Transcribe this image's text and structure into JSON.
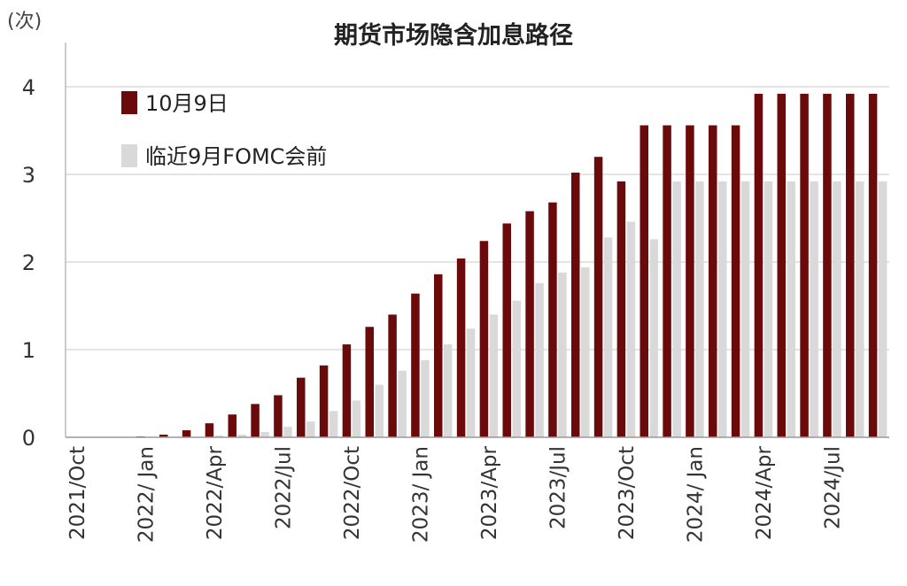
{
  "chart_data": {
    "type": "bar",
    "title": "期货市场隐含加息路径",
    "unit_label": "(次)",
    "ylim": [
      0,
      4.5
    ],
    "yticks": [
      "0",
      "1",
      "2",
      "3",
      "4"
    ],
    "grid": true,
    "legend_position": "top-left",
    "categories": [
      "2021/10",
      "2021/11",
      "2021/12",
      "2022/01",
      "2022/02",
      "2022/03",
      "2022/04",
      "2022/05",
      "2022/06",
      "2022/07",
      "2022/08",
      "2022/09",
      "2022/10",
      "2022/11",
      "2022/12",
      "2023/01",
      "2023/02",
      "2023/03",
      "2023/04",
      "2023/05",
      "2023/06",
      "2023/07",
      "2023/08",
      "2023/09",
      "2023/10",
      "2023/11",
      "2023/12",
      "2024/01",
      "2024/02",
      "2024/03",
      "2024/04",
      "2024/05",
      "2024/06",
      "2024/07",
      "2024/08",
      "2024/09"
    ],
    "xtick_labels": [
      {
        "index": 0,
        "label": "2021/Oct"
      },
      {
        "index": 3,
        "label": "2022/ Jan"
      },
      {
        "index": 6,
        "label": "2022/Apr"
      },
      {
        "index": 9,
        "label": "2022/Jul"
      },
      {
        "index": 12,
        "label": "2022/Oct"
      },
      {
        "index": 15,
        "label": "2023/ Jan"
      },
      {
        "index": 18,
        "label": "2023/Apr"
      },
      {
        "index": 21,
        "label": "2023/Jul"
      },
      {
        "index": 24,
        "label": "2023/Oct"
      },
      {
        "index": 27,
        "label": "2024/ Jan"
      },
      {
        "index": 30,
        "label": "2024/Apr"
      },
      {
        "index": 33,
        "label": "2024/Jul"
      }
    ],
    "series": [
      {
        "name": "10月9日",
        "color": "#6b0a0a",
        "values": [
          0.0,
          0.0,
          0.0,
          0.01,
          0.03,
          0.08,
          0.16,
          0.26,
          0.38,
          0.48,
          0.68,
          0.82,
          1.06,
          1.26,
          1.4,
          1.64,
          1.86,
          2.04,
          2.24,
          2.44,
          2.58,
          2.68,
          3.02,
          3.2,
          2.92,
          3.56,
          3.56,
          3.56,
          3.56,
          3.56,
          3.92,
          3.92,
          3.92,
          3.92,
          3.92,
          3.92
        ]
      },
      {
        "name": "临近9月FOMC会前",
        "color": "#d9d9d9",
        "values": [
          0.0,
          0.0,
          0.0,
          0.0,
          0.0,
          0.0,
          0.02,
          0.03,
          0.06,
          0.12,
          0.18,
          0.3,
          0.42,
          0.6,
          0.76,
          0.88,
          1.06,
          1.24,
          1.4,
          1.56,
          1.76,
          1.88,
          1.94,
          2.28,
          2.46,
          2.26,
          2.92,
          2.92,
          2.92,
          2.92,
          2.92,
          2.92,
          2.92,
          2.92,
          2.92,
          2.92
        ]
      }
    ]
  }
}
